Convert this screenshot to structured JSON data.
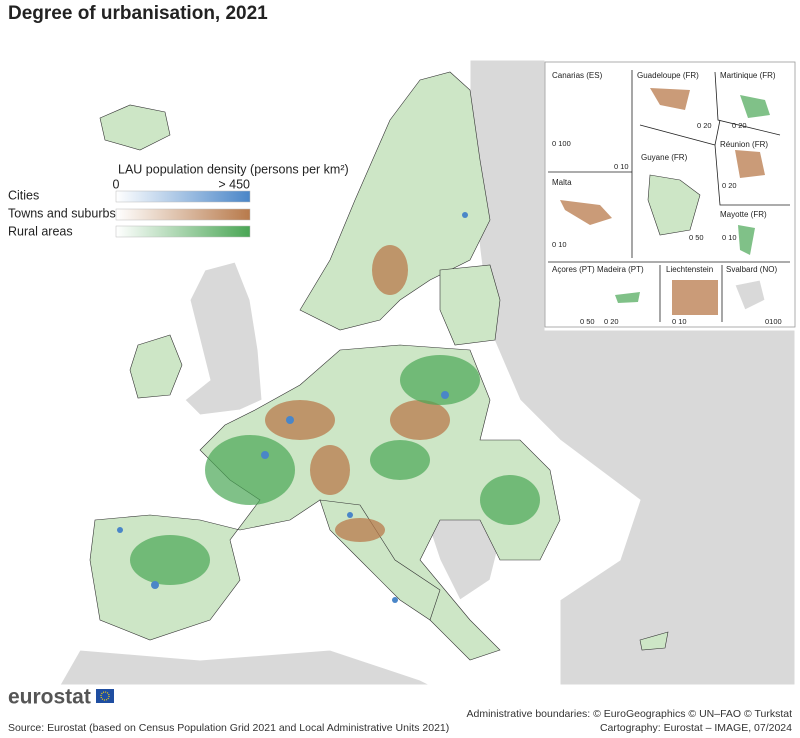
{
  "header": {
    "title": "Degree of urbanisation, 2021"
  },
  "legend": {
    "title": "LAU population density (persons per km²)",
    "scale_min": "0",
    "scale_max": "> 450",
    "classes": [
      "Cities",
      "Towns and suburbs",
      "Rural areas"
    ]
  },
  "insets": [
    {
      "label": "Canarias (ES)",
      "scales": [
        "0 100",
        "0 10"
      ]
    },
    {
      "label": "Guadeloupe (FR)",
      "scales": [
        "0 20"
      ]
    },
    {
      "label": "Martinique (FR)",
      "scales": [
        "0 20"
      ]
    },
    {
      "label": "Malta",
      "scales": [
        "0 10"
      ]
    },
    {
      "label": "Guyane (FR)",
      "scales": [
        "0 50"
      ]
    },
    {
      "label": "Réunion (FR)",
      "scales": [
        "0 20"
      ]
    },
    {
      "label": "Mayotte (FR)",
      "scales": [
        "0 10"
      ]
    },
    {
      "label": "Açores (PT)",
      "scales": [
        "0 50"
      ]
    },
    {
      "label": "Madeira (PT)",
      "scales": [
        "0 20"
      ]
    },
    {
      "label": "Liechtenstein",
      "scales": [
        "0 10"
      ]
    },
    {
      "label": "Svalbard (NO)",
      "scales": [
        "0100"
      ]
    }
  ],
  "footer": {
    "brand": "eurostat",
    "source": "Source: Eurostat (based on Census Population Grid 2021 and Local Administrative Units 2021)",
    "boundaries": "Administrative boundaries: © EuroGeographics © UN–FAO © Turkstat",
    "cartography": "Cartography: Eurostat – IMAGE, 07/2024"
  }
}
